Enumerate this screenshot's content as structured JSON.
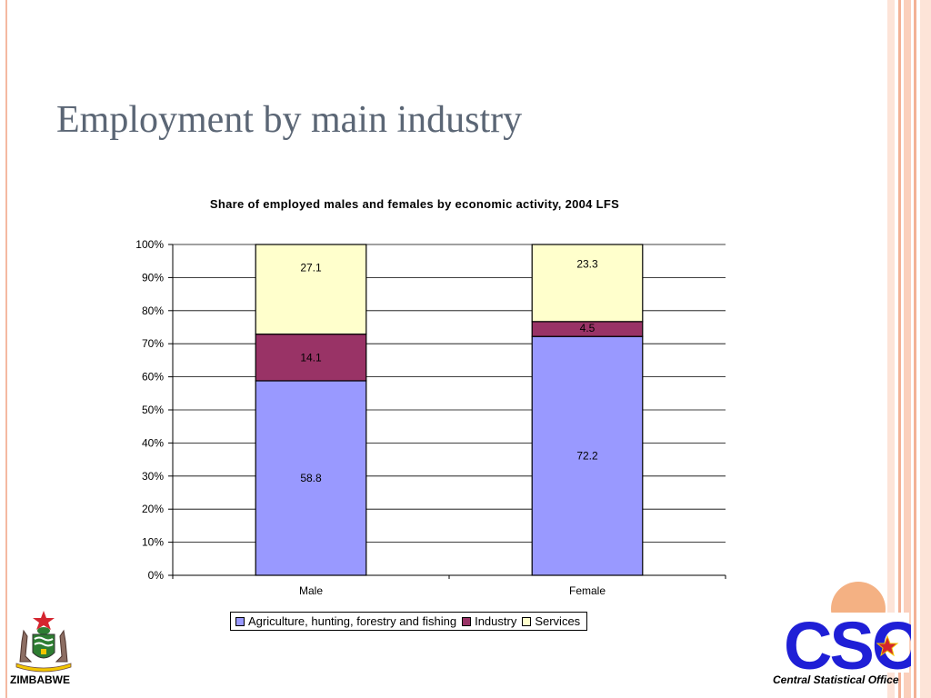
{
  "slide": {
    "title": "Employment by main industry",
    "accent_color": "#f4b183"
  },
  "chart_data": {
    "type": "bar",
    "stacked": true,
    "normalized": true,
    "title": "Share of employed males and females by economic activity, 2004 LFS",
    "categories": [
      "Male",
      "Female"
    ],
    "series": [
      {
        "name": "Agriculture, hunting, forestry and fishing",
        "values": [
          58.8,
          72.2
        ],
        "color": "#9999ff"
      },
      {
        "name": "Industry",
        "values": [
          14.1,
          4.5
        ],
        "color": "#993366"
      },
      {
        "name": "Services",
        "values": [
          27.1,
          23.3
        ],
        "color": "#ffffcc"
      }
    ],
    "data_labels": [
      [
        "58.8",
        "72.2"
      ],
      [
        "14.1",
        "4.5"
      ],
      [
        "27.1",
        "23.3"
      ]
    ],
    "y_ticks": [
      "0%",
      "10%",
      "20%",
      "30%",
      "40%",
      "50%",
      "60%",
      "70%",
      "80%",
      "90%",
      "100%"
    ],
    "ylim": [
      0,
      100
    ],
    "grid": true,
    "legend_position": "bottom"
  },
  "logos": {
    "left_caption": "ZIMBABWE",
    "right_text": "CSO",
    "right_caption": "Central Statistical Office",
    "cso_blue": "#1f1fd6"
  }
}
